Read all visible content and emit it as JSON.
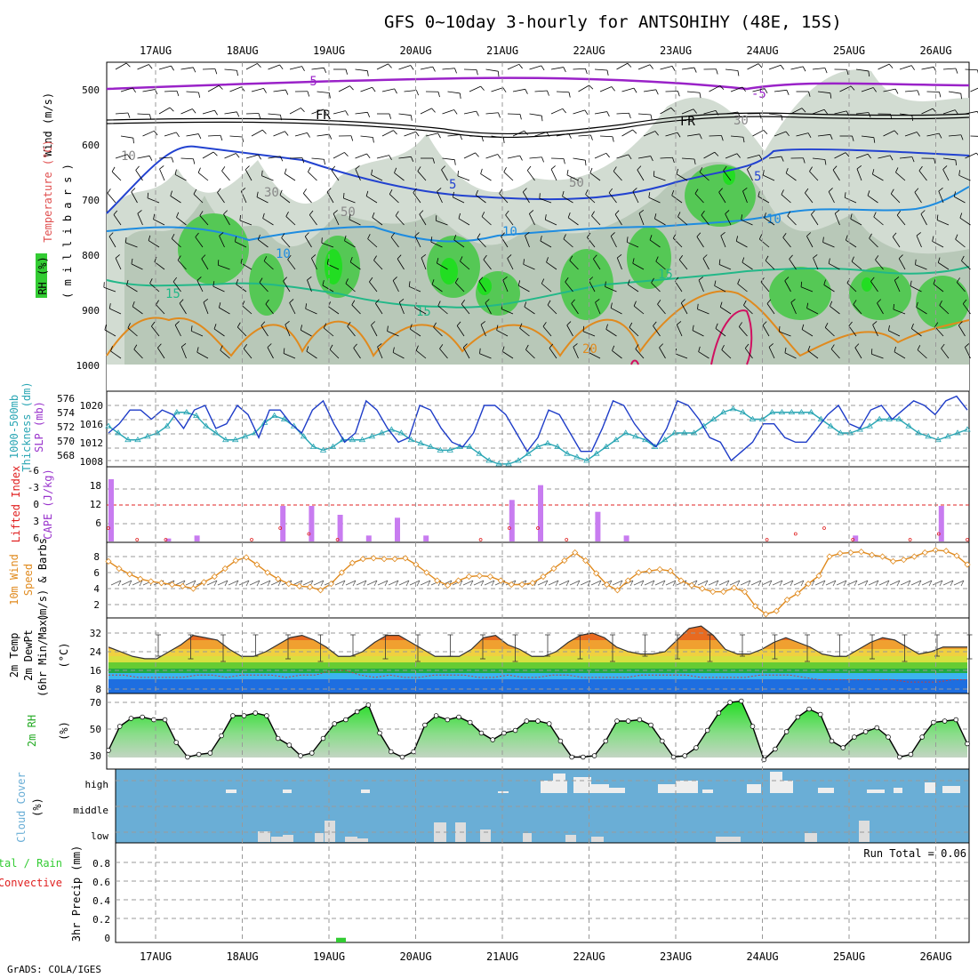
{
  "title": "GFS 0~10day 3-hourly for ANTSOHIHY (48E, 15S)",
  "credit": "GrADS: COLA/IGES",
  "dates": [
    "17AUG",
    "18AUG",
    "19AUG",
    "20AUG",
    "21AUG",
    "22AUG",
    "23AUG",
    "24AUG",
    "25AUG",
    "26AUG"
  ],
  "colors": {
    "green": "#33cc33",
    "purple": "#9933cc",
    "blue": "#1e3cc8",
    "cyan": "#2aa6b4",
    "orange": "#e08a1e",
    "red": "#e02020",
    "cloud": "#6aaed6",
    "rhfill": "#c8d4c8"
  },
  "panels": {
    "profile": {
      "labels": {
        "wind": "Wind (m/s)",
        "temp": "Temperature (°C)",
        "mb": "( m i l l i b a r s )",
        "rh": "RH (%)"
      },
      "ticks": [
        "500",
        "600",
        "700",
        "800",
        "900",
        "1000"
      ]
    },
    "slp": {
      "labels": {
        "thick": "1000-500mb",
        "thick2": "Thickness (dm)",
        "slp": "SLP (mb)"
      },
      "left_ticks": [
        "576",
        "574",
        "572",
        "570",
        "568"
      ],
      "right_ticks": [
        "1020",
        "1016",
        "1012",
        "1008"
      ]
    },
    "cape": {
      "labels": {
        "li": "Lifted Index",
        "cape": "CAPE (J/kg)"
      },
      "left_ticks": [
        "-6",
        "-3",
        "0",
        "3",
        "6"
      ],
      "right_ticks": [
        "18",
        "12",
        "6"
      ]
    },
    "wind10": {
      "labels": {
        "a": "10m Wind",
        "b": "Speed",
        "c": "(m/s) & Barbs"
      },
      "ticks": [
        "8",
        "6",
        "4",
        "2"
      ]
    },
    "temp2m": {
      "labels": {
        "a": "2m Temp",
        "b": "2m DewPt",
        "c": "(6hr Min/Max)",
        "unit": "(°C)"
      },
      "ticks": [
        "32",
        "24",
        "16",
        "8"
      ]
    },
    "rh2m": {
      "labels": {
        "a": "2m RH",
        "unit": "(%)"
      },
      "ticks": [
        "70",
        "50",
        "30"
      ]
    },
    "cloud": {
      "labels": {
        "a": "Cloud Cover",
        "unit": "(%)"
      },
      "ticks": [
        "high",
        "middle",
        "low"
      ]
    },
    "precip": {
      "labels": {
        "a": "Total / Rain",
        "b": "Convective",
        "c": "3hr Precip (mm)"
      },
      "ticks": [
        "0.8",
        "0.6",
        "0.4",
        "0.2",
        "0"
      ],
      "run_total": "Run Total = 0.06"
    }
  },
  "chart_data": [
    {
      "type": "contour",
      "title": "Temperature / RH / Wind profile",
      "ylabel": "millibars",
      "ylim": [
        1000,
        450
      ],
      "contour_labels": [
        "-5",
        "FR",
        "-5",
        "FR",
        "5",
        "5",
        "10",
        "10",
        "10",
        "15",
        "15",
        "15",
        "20",
        "30",
        "50",
        "30",
        "50",
        "10"
      ]
    },
    {
      "type": "line",
      "title": "SLP and 1000-500mb Thickness",
      "series": [
        {
          "name": "SLP (mb)",
          "ylim": [
            1006,
            1022
          ],
          "values": [
            1014,
            1016,
            1019,
            1019,
            1017,
            1019,
            1018,
            1015,
            1019,
            1020,
            1015,
            1016,
            1020,
            1018,
            1013,
            1019,
            1019,
            1016,
            1014,
            1019,
            1021,
            1016,
            1012,
            1014,
            1021,
            1019,
            1015,
            1012,
            1013,
            1020,
            1019,
            1015,
            1012,
            1011,
            1014,
            1020,
            1020,
            1018,
            1014,
            1010,
            1013,
            1019,
            1018,
            1014,
            1010,
            1010,
            1015,
            1021,
            1020,
            1016,
            1013,
            1011,
            1015,
            1021,
            1020,
            1017,
            1013,
            1012,
            1008,
            1010,
            1012,
            1016,
            1016,
            1013,
            1012,
            1012,
            1015,
            1018,
            1020,
            1016,
            1015,
            1019,
            1020,
            1017,
            1019,
            1021,
            1020,
            1018,
            1021,
            1022,
            1019
          ]
        },
        {
          "name": "Thickness (dm)",
          "ylim": [
            567,
            577
          ],
          "values": [
            573,
            572,
            571,
            571,
            571.5,
            572,
            573,
            575,
            575,
            574.5,
            573,
            572,
            571,
            571,
            571.5,
            572,
            573.5,
            574.5,
            574,
            573,
            571.5,
            570,
            569.5,
            570,
            571,
            571,
            571,
            571.5,
            572,
            572.5,
            572,
            571,
            570.5,
            570,
            569.5,
            569.5,
            570,
            570,
            569,
            568,
            567.5,
            567.5,
            568,
            569,
            570,
            570.5,
            570,
            569,
            568.5,
            568,
            569,
            570,
            571,
            572,
            571.5,
            571,
            570,
            571,
            572,
            572,
            572,
            573,
            574,
            575,
            575.5,
            575,
            574,
            574,
            575,
            575,
            575,
            575,
            575,
            574,
            573,
            572,
            572,
            572.5,
            573,
            574,
            574,
            574,
            573,
            572,
            571.5,
            571,
            571.5,
            572,
            572.5
          ]
        }
      ]
    },
    {
      "type": "bar",
      "title": "CAPE and Lifted Index",
      "ylabel": "CAPE (J/kg)",
      "ylim": [
        0,
        22
      ],
      "bars": [
        [
          0,
          21
        ],
        [
          0,
          2
        ],
        [
          2,
          1
        ],
        [
          3,
          2
        ],
        [
          6,
          12
        ],
        [
          7,
          12
        ],
        [
          8,
          9
        ],
        [
          9,
          2
        ],
        [
          10,
          8
        ],
        [
          11,
          2
        ],
        [
          14,
          14
        ],
        [
          15,
          19
        ],
        [
          17,
          10
        ],
        [
          18,
          2
        ],
        [
          26,
          2
        ],
        [
          29,
          12
        ]
      ],
      "li_series": [
        [
          0,
          4
        ],
        [
          1,
          6
        ],
        [
          2,
          6
        ],
        [
          5,
          6
        ],
        [
          6,
          4
        ],
        [
          7,
          5
        ],
        [
          8,
          6
        ],
        [
          13,
          6
        ],
        [
          14,
          4
        ],
        [
          15,
          4
        ],
        [
          16,
          6
        ],
        [
          23,
          6
        ],
        [
          24,
          5
        ],
        [
          25,
          4
        ],
        [
          26,
          6
        ],
        [
          28,
          6
        ],
        [
          29,
          5
        ],
        [
          30,
          6
        ]
      ]
    },
    {
      "type": "line",
      "title": "10m Wind Speed",
      "ylabel": "m/s",
      "ylim": [
        0,
        9
      ],
      "values": [
        7.4,
        6.5,
        5.8,
        5.2,
        4.9,
        4.7,
        4.5,
        4.3,
        4.0,
        4.8,
        5.5,
        6.5,
        7.5,
        7.9,
        7.0,
        6.0,
        5.2,
        4.6,
        4.3,
        4.2,
        3.8,
        4.6,
        6.0,
        7.2,
        7.7,
        7.8,
        7.7,
        7.7,
        7.8,
        7.0,
        6.0,
        5.0,
        4.4,
        5.0,
        5.5,
        5.6,
        5.5,
        5.0,
        4.5,
        4.5,
        4.7,
        5.5,
        6.5,
        7.5,
        8.5,
        7.5,
        5.9,
        4.5,
        3.8,
        5.0,
        6.0,
        6.2,
        6.4,
        6.2,
        5.0,
        4.4,
        4.0,
        3.6,
        3.6,
        4.1,
        3.6,
        1.8,
        0.8,
        1.2,
        2.6,
        3.4,
        4.6,
        5.6,
        8.0,
        8.4,
        8.5,
        8.6,
        8.2,
        8.0,
        7.4,
        7.6,
        8.0,
        8.5,
        8.8,
        8.7,
        8.1,
        7.0
      ]
    },
    {
      "type": "area",
      "title": "2m Temp and DewPt",
      "ylabel": "°C",
      "ylim": [
        6,
        36
      ],
      "temp": [
        26,
        24,
        22,
        21,
        21,
        24,
        27,
        31,
        30,
        29,
        25,
        22,
        22,
        24,
        27,
        30,
        31,
        29,
        26,
        22,
        22,
        24,
        28,
        31,
        31,
        28,
        25,
        22,
        22,
        22,
        25,
        30,
        31,
        27,
        25,
        22,
        22,
        24,
        28,
        31,
        32,
        30,
        26,
        24,
        23,
        23,
        24,
        29,
        34,
        35,
        31,
        25,
        23,
        23,
        25,
        28,
        30,
        28,
        26,
        23,
        22,
        22,
        25,
        28,
        30,
        29,
        26,
        23,
        24,
        26,
        26,
        26
      ],
      "dewpoint": [
        14,
        14,
        13,
        13,
        13,
        13,
        14,
        14,
        13,
        14,
        14,
        14,
        13,
        14,
        14,
        16,
        16,
        14,
        13,
        14,
        13,
        13,
        14,
        14,
        14,
        13,
        13,
        14,
        13,
        13,
        14,
        14,
        13,
        13,
        13,
        13,
        14,
        14,
        14,
        14,
        13,
        13,
        13,
        13,
        14,
        14,
        14,
        13,
        12,
        12,
        12,
        12,
        12,
        12,
        11,
        11,
        11,
        12,
        12
      ]
    },
    {
      "type": "area",
      "title": "2m RH",
      "ylabel": "%",
      "ylim": [
        25,
        72
      ],
      "values": [
        34,
        52,
        58,
        59,
        57,
        57,
        40,
        29,
        31,
        32,
        45,
        60,
        60,
        62,
        60,
        43,
        38,
        30,
        32,
        43,
        54,
        57,
        63,
        68,
        47,
        33,
        29,
        33,
        53,
        60,
        57,
        59,
        55,
        47,
        42,
        47,
        49,
        56,
        56,
        54,
        41,
        29,
        29,
        30,
        41,
        56,
        56,
        57,
        53,
        41,
        29,
        30,
        36,
        49,
        62,
        70,
        71,
        52,
        27,
        35,
        48,
        59,
        65,
        61,
        41,
        36,
        44,
        48,
        51,
        44,
        29,
        31,
        44,
        55,
        56,
        57,
        39
      ]
    },
    {
      "type": "bar",
      "title": "Cloud Cover",
      "ylabel": "%",
      "categories": [
        "high",
        "middle",
        "low"
      ]
    },
    {
      "type": "bar",
      "title": "3hr Precip",
      "ylabel": "mm",
      "ylim": [
        0,
        1
      ],
      "bars": [
        [
          20,
          0.05
        ]
      ],
      "run_total": 0.06
    }
  ]
}
